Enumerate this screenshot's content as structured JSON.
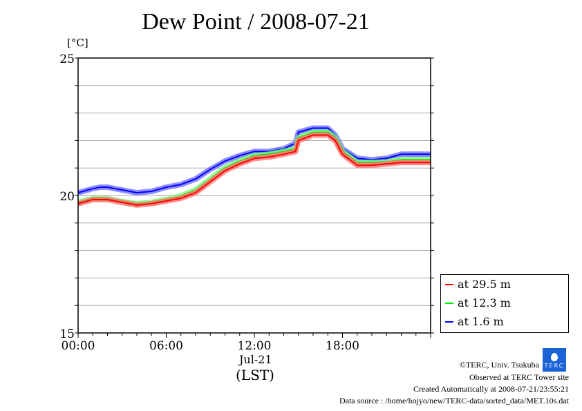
{
  "chart_data": {
    "type": "line",
    "title": "Dew Point / 2008-07-21",
    "ylabel": "[°C]",
    "xlabel": "(LST)",
    "date_label": "Jul-21",
    "xlim": [
      0,
      24
    ],
    "ylim": [
      15,
      25
    ],
    "x_ticks": [
      {
        "v": 0,
        "label": "00:00"
      },
      {
        "v": 6,
        "label": "06:00"
      },
      {
        "v": 12,
        "label": "12:00"
      },
      {
        "v": 18,
        "label": "18:00"
      }
    ],
    "y_ticks": [
      {
        "v": 15,
        "label": "15"
      },
      {
        "v": 20,
        "label": "20"
      },
      {
        "v": 25,
        "label": "25"
      }
    ],
    "grid": true,
    "legend_position": "right-bottom-outside",
    "x_hours": [
      0,
      1,
      1.5,
      2,
      3,
      4,
      5,
      6,
      7,
      8,
      9,
      10,
      11,
      12,
      13,
      14,
      14.8,
      15,
      16,
      17,
      17.5,
      18,
      19,
      20,
      21,
      22,
      23,
      24
    ],
    "series": [
      {
        "name": "at 29.5 m",
        "color": "#ff0000",
        "values": [
          19.7,
          19.85,
          19.85,
          19.85,
          19.75,
          19.65,
          19.7,
          19.8,
          19.9,
          20.1,
          20.5,
          20.9,
          21.15,
          21.35,
          21.4,
          21.5,
          21.6,
          22.0,
          22.2,
          22.2,
          22.0,
          21.5,
          21.1,
          21.1,
          21.15,
          21.2,
          21.2,
          21.2
        ]
      },
      {
        "name": "at 12.3 m",
        "color": "#00ee00",
        "values": [
          19.75,
          19.88,
          19.9,
          19.88,
          19.78,
          19.7,
          19.75,
          19.85,
          19.98,
          20.2,
          20.6,
          21.0,
          21.25,
          21.45,
          21.5,
          21.6,
          21.7,
          22.1,
          22.3,
          22.3,
          22.1,
          21.6,
          21.2,
          21.2,
          21.22,
          21.3,
          21.3,
          21.3
        ]
      },
      {
        "name": "at 1.6 m",
        "color": "#0000ff",
        "values": [
          20.1,
          20.25,
          20.3,
          20.3,
          20.2,
          20.1,
          20.15,
          20.3,
          20.4,
          20.6,
          20.95,
          21.25,
          21.45,
          21.6,
          21.6,
          21.7,
          21.9,
          22.3,
          22.45,
          22.45,
          22.2,
          21.7,
          21.35,
          21.3,
          21.35,
          21.5,
          21.5,
          21.5
        ]
      }
    ]
  },
  "footer": {
    "copyright": "©TERC, Univ. Tsukuba",
    "observed": "Observed at TERC Tower site",
    "created": "Created Automatically at 2008-07-21/23:55:21",
    "source": "Data source : /home/hojyo/new/TERC-data/sorted_data/MET.10s.dat",
    "logo_text": "TERC"
  }
}
